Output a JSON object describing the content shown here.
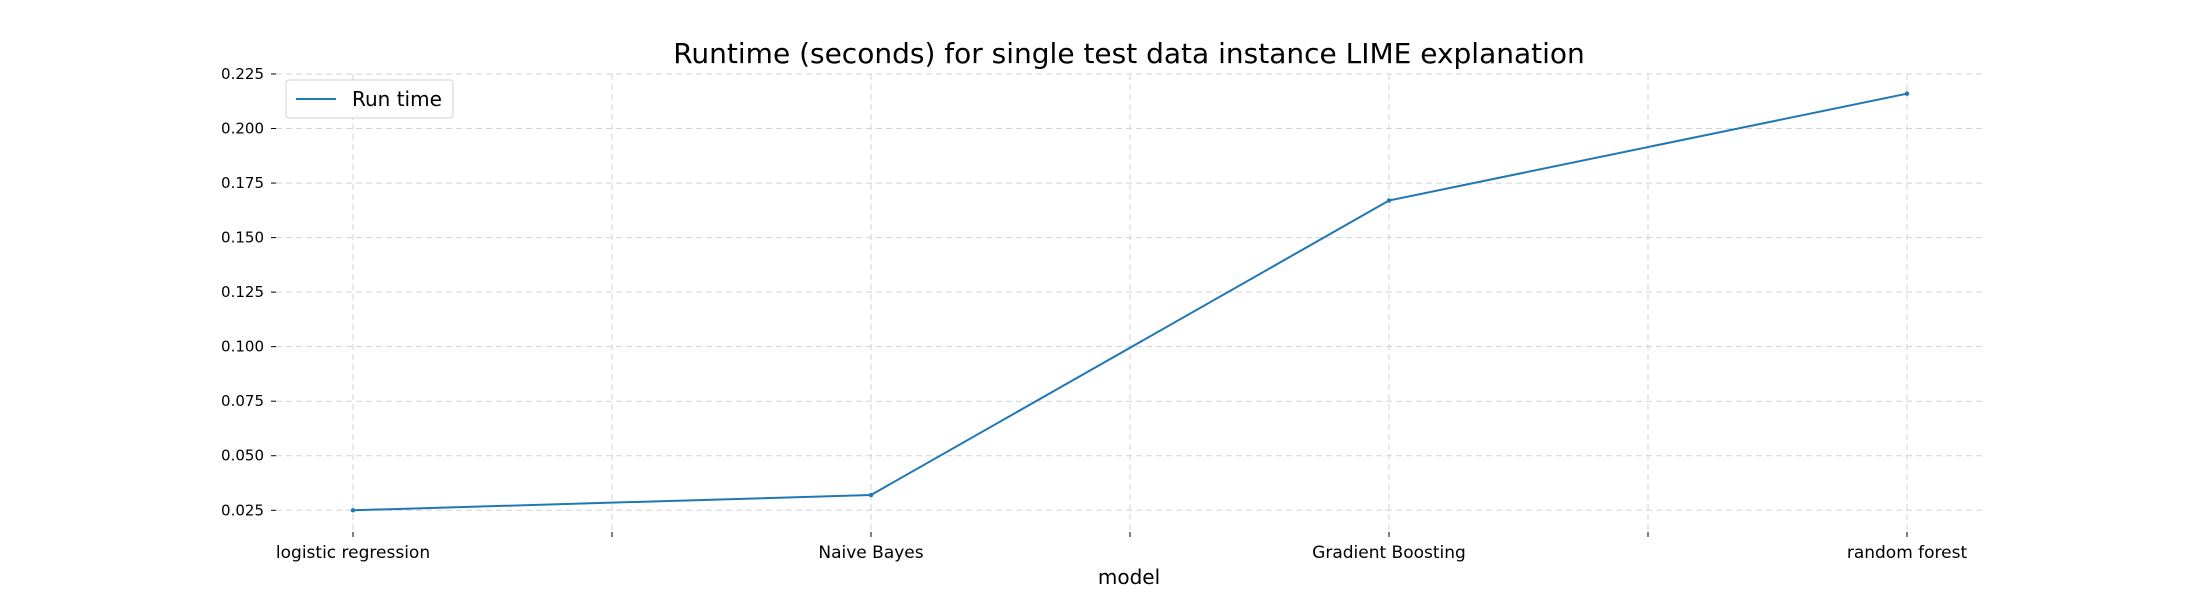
{
  "chart_data": {
    "type": "line",
    "title": "Runtime (seconds) for single test data instance LIME explanation",
    "xlabel": "model",
    "ylabel": "",
    "categories": [
      "logistic regression",
      "",
      "Naive Bayes",
      "",
      "Gradient Boosting",
      "",
      "random forest"
    ],
    "x_tick_labels": [
      "logistic regression",
      "Naive Bayes",
      "Gradient Boosting",
      "random forest"
    ],
    "series": [
      {
        "name": "Run time",
        "color": "#1f77b4",
        "points": [
          {
            "x": "logistic regression",
            "y": 0.025
          },
          {
            "x": "Naive Bayes",
            "y": 0.032
          },
          {
            "x": "Gradient Boosting",
            "y": 0.167
          },
          {
            "x": "random forest",
            "y": 0.216
          }
        ]
      }
    ],
    "y_ticks": [
      "0.025",
      "0.050",
      "0.075",
      "0.100",
      "0.125",
      "0.150",
      "0.175",
      "0.200",
      "0.225"
    ],
    "ylim": [
      0.0155,
      0.225
    ],
    "grid": true,
    "grid_style": "dashed",
    "legend_position": "top-left"
  }
}
